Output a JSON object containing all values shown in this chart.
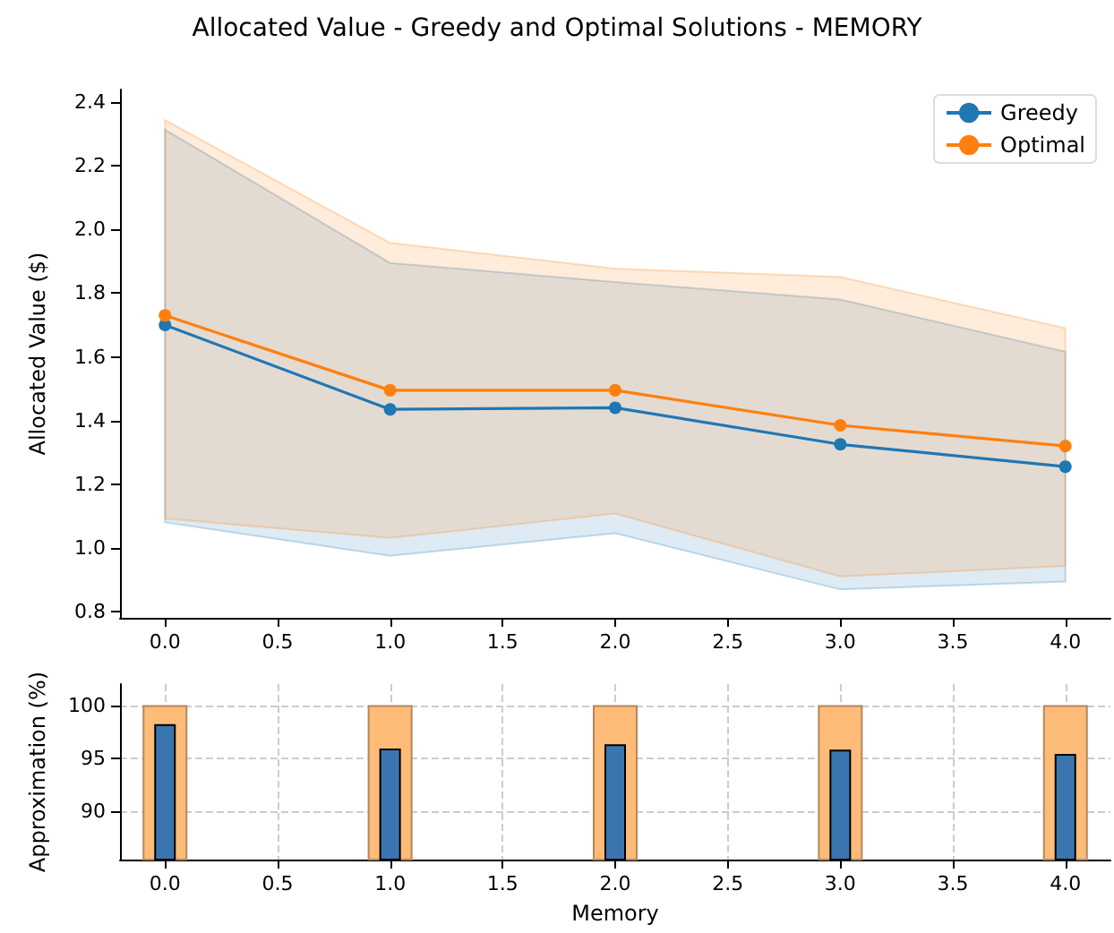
{
  "chart_data": [
    {
      "type": "line",
      "title": "Allocated Value - Greedy and Optimal Solutions - MEMORY",
      "ylabel": "Allocated Value ($)",
      "x": [
        0,
        1,
        2,
        3,
        4
      ],
      "series": [
        {
          "name": "Greedy",
          "color": "#1f77b4",
          "values": [
            1.7,
            1.435,
            1.44,
            1.325,
            1.255
          ],
          "lower": [
            1.08,
            0.975,
            1.046,
            0.869,
            0.894
          ],
          "upper": [
            2.314,
            1.895,
            1.835,
            1.78,
            1.616
          ]
        },
        {
          "name": "Optimal",
          "color": "#ff7f0e",
          "values": [
            1.73,
            1.495,
            1.495,
            1.385,
            1.32
          ],
          "lower": [
            1.092,
            1.031,
            1.108,
            0.91,
            0.943
          ],
          "upper": [
            2.344,
            1.958,
            1.877,
            1.851,
            1.69
          ]
        }
      ],
      "xlim": [
        -0.2,
        4.2
      ],
      "xticks": [
        {
          "value": 0,
          "label": "0.0"
        },
        0.5,
        {
          "value": 1,
          "label": "1.0"
        },
        1.5,
        {
          "value": 2,
          "label": "2.0"
        },
        2.5,
        {
          "value": 3,
          "label": "3.0"
        },
        3.5,
        {
          "value": 4,
          "label": "4.0"
        }
      ],
      "ylim": [
        0.78,
        2.44
      ],
      "yticks": [
        0.8,
        {
          "value": 1,
          "label": "1.0"
        },
        1.2,
        1.4,
        1.6,
        1.8,
        {
          "value": 2,
          "label": "2.0"
        },
        2.2,
        2.4
      ],
      "marker": "circle",
      "legend": "top right",
      "grid": false
    },
    {
      "type": "bar",
      "xlabel": "Memory",
      "ylabel": "Approximation (%)",
      "x": [
        0,
        1,
        2,
        3,
        4
      ],
      "series": [
        {
          "color": "#ffbb78",
          "values": [
            100,
            100,
            100,
            100,
            100
          ]
        },
        {
          "color": "#3b75af",
          "values": [
            98.2,
            95.9,
            96.3,
            95.8,
            95.4
          ]
        }
      ],
      "xlim": [
        -0.2,
        4.2
      ],
      "xticks": [
        {
          "value": 0,
          "label": "0.0"
        },
        0.5,
        {
          "value": 1,
          "label": "1.0"
        },
        1.5,
        {
          "value": 2,
          "label": "2.0"
        },
        2.5,
        {
          "value": 3,
          "label": "3.0"
        },
        3.5,
        {
          "value": 4,
          "label": "4.0"
        }
      ],
      "ylim": [
        85.4,
        102
      ],
      "yticks": [
        90,
        95,
        100
      ],
      "grid": true,
      "legend": false
    }
  ]
}
